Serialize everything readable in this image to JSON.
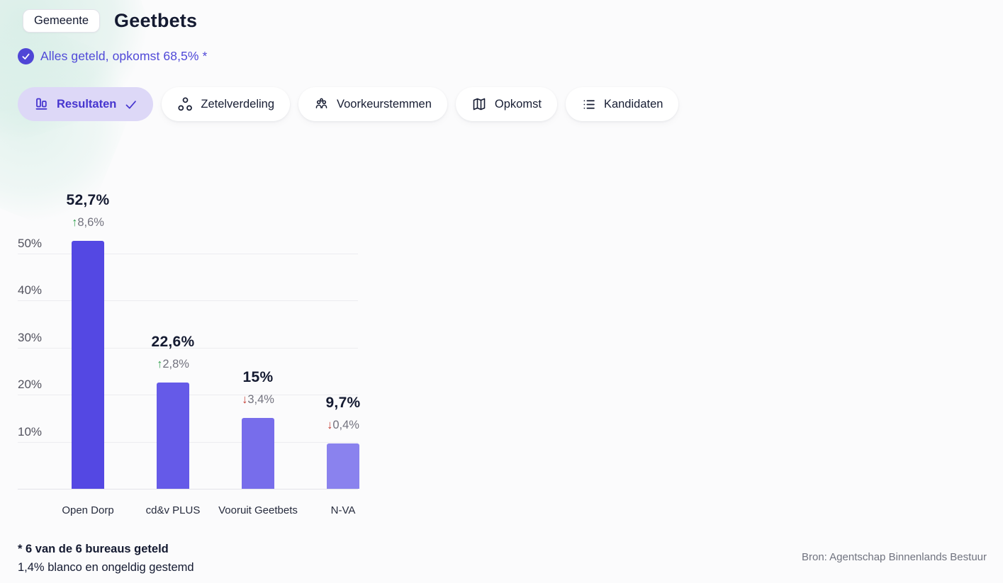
{
  "header": {
    "badge": "Gemeente",
    "title": "Geetbets"
  },
  "status": {
    "icon": "check-circle-icon",
    "text": "Alles geteld, opkomst 68,5% *",
    "color": "#4f46d6"
  },
  "tabs": {
    "items": [
      {
        "label": "Resultaten",
        "icon": "bar-chart-icon",
        "active": true,
        "checked": true
      },
      {
        "label": "Zetelverdeling",
        "icon": "seats-icon",
        "active": false
      },
      {
        "label": "Voorkeurstemmen",
        "icon": "people-icon",
        "active": false
      },
      {
        "label": "Opkomst",
        "icon": "map-icon",
        "active": false
      },
      {
        "label": "Kandidaten",
        "icon": "list-icon",
        "active": false
      }
    ]
  },
  "chart_data": {
    "type": "bar",
    "categories": [
      "Open Dorp",
      "cd&v PLUS",
      "Vooruit Geetbets",
      "N-VA"
    ],
    "values": [
      52.7,
      22.6,
      15,
      9.7
    ],
    "value_labels": [
      "52,7%",
      "22,6%",
      "15%",
      "9,7%"
    ],
    "changes": [
      {
        "label": "8,6%",
        "direction": "up"
      },
      {
        "label": "2,8%",
        "direction": "up"
      },
      {
        "label": "3,4%",
        "direction": "down"
      },
      {
        "label": "0,4%",
        "direction": "down"
      }
    ],
    "bar_colors": [
      "#5448e3",
      "#655ae8",
      "#776deb",
      "#8a82ee"
    ],
    "yticks": [
      "10%",
      "20%",
      "30%",
      "40%",
      "50%"
    ],
    "ytick_values": [
      10,
      20,
      30,
      40,
      50
    ],
    "ylim": [
      0,
      65
    ],
    "grid": true,
    "legend": false,
    "title": "",
    "xlabel": "",
    "ylabel": ""
  },
  "icons": {
    "up-arrow": "↑",
    "down-arrow": "↓"
  },
  "footnotes": {
    "line1": "* 6 van de 6 bureaus geteld",
    "line2": "1,4% blanco en ongeldig gestemd"
  },
  "source": "Bron: Agentschap Binnenlands Bestuur"
}
